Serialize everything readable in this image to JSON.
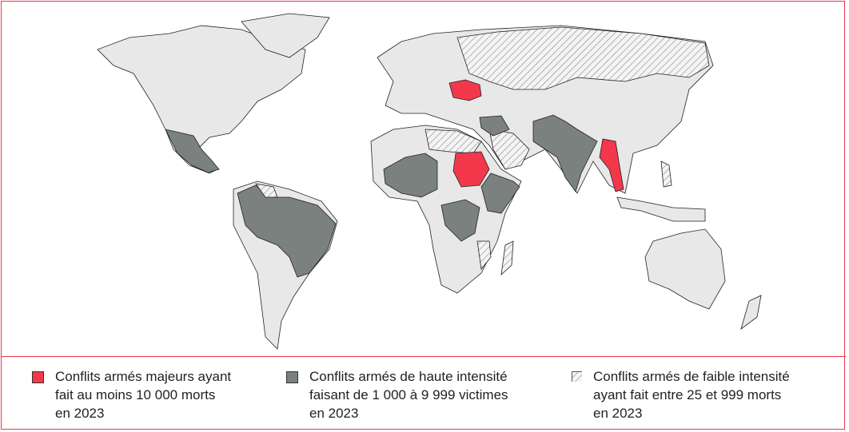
{
  "colors": {
    "major": "#f2384a",
    "high": "#7a817f",
    "low_hatch": "#888888",
    "land": "#e8e8e8",
    "border": "#e8394a"
  },
  "legend": [
    {
      "category": "major",
      "text": "Conflits armés majeurs ayant\nfait au moins 10 000 morts\nen 2023"
    },
    {
      "category": "high",
      "text": "Conflits armés de haute intensité\nfaisant de 1 000 à 9 999 victimes\nen 2023"
    },
    {
      "category": "low",
      "text": "Conflits armés de faible intensité\nayant fait entre 25 et 999 morts\nen 2023"
    }
  ]
}
